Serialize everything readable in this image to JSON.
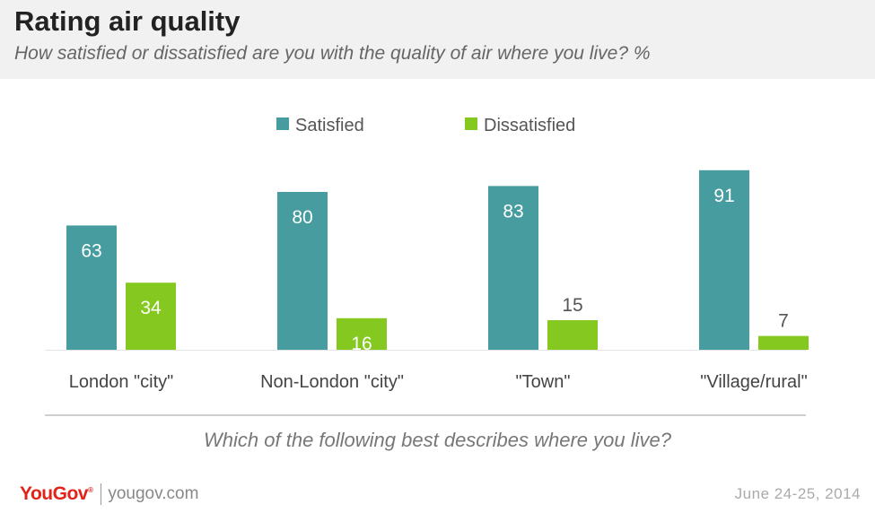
{
  "header": {
    "title": "Rating air quality",
    "subtitle": "How satisfied or dissatisfied are you with the quality of air where you live? %"
  },
  "chart_data": {
    "type": "bar",
    "title": "Rating air quality",
    "subtitle": "How satisfied or dissatisfied are you with the quality of air where you live? %",
    "xlabel": "Which of the following best describes where you live?",
    "ylabel": "",
    "ylim": [
      0,
      100
    ],
    "grid": false,
    "legend_position": "top-center",
    "categories": [
      "London \"city\"",
      "Non-London \"city\"",
      "\"Town\"",
      "\"Village/rural\""
    ],
    "series": [
      {
        "name": "Satisfied",
        "color": "#469c9e",
        "values": [
          63,
          80,
          83,
          91
        ]
      },
      {
        "name": "Dissatisfied",
        "color": "#85c81f",
        "values": [
          34,
          16,
          15,
          7
        ]
      }
    ]
  },
  "footer": {
    "question": "Which of the following best describes where you live?",
    "logo": "YouGov",
    "site": "yougov.com",
    "date": "June 24-25, 2014"
  }
}
